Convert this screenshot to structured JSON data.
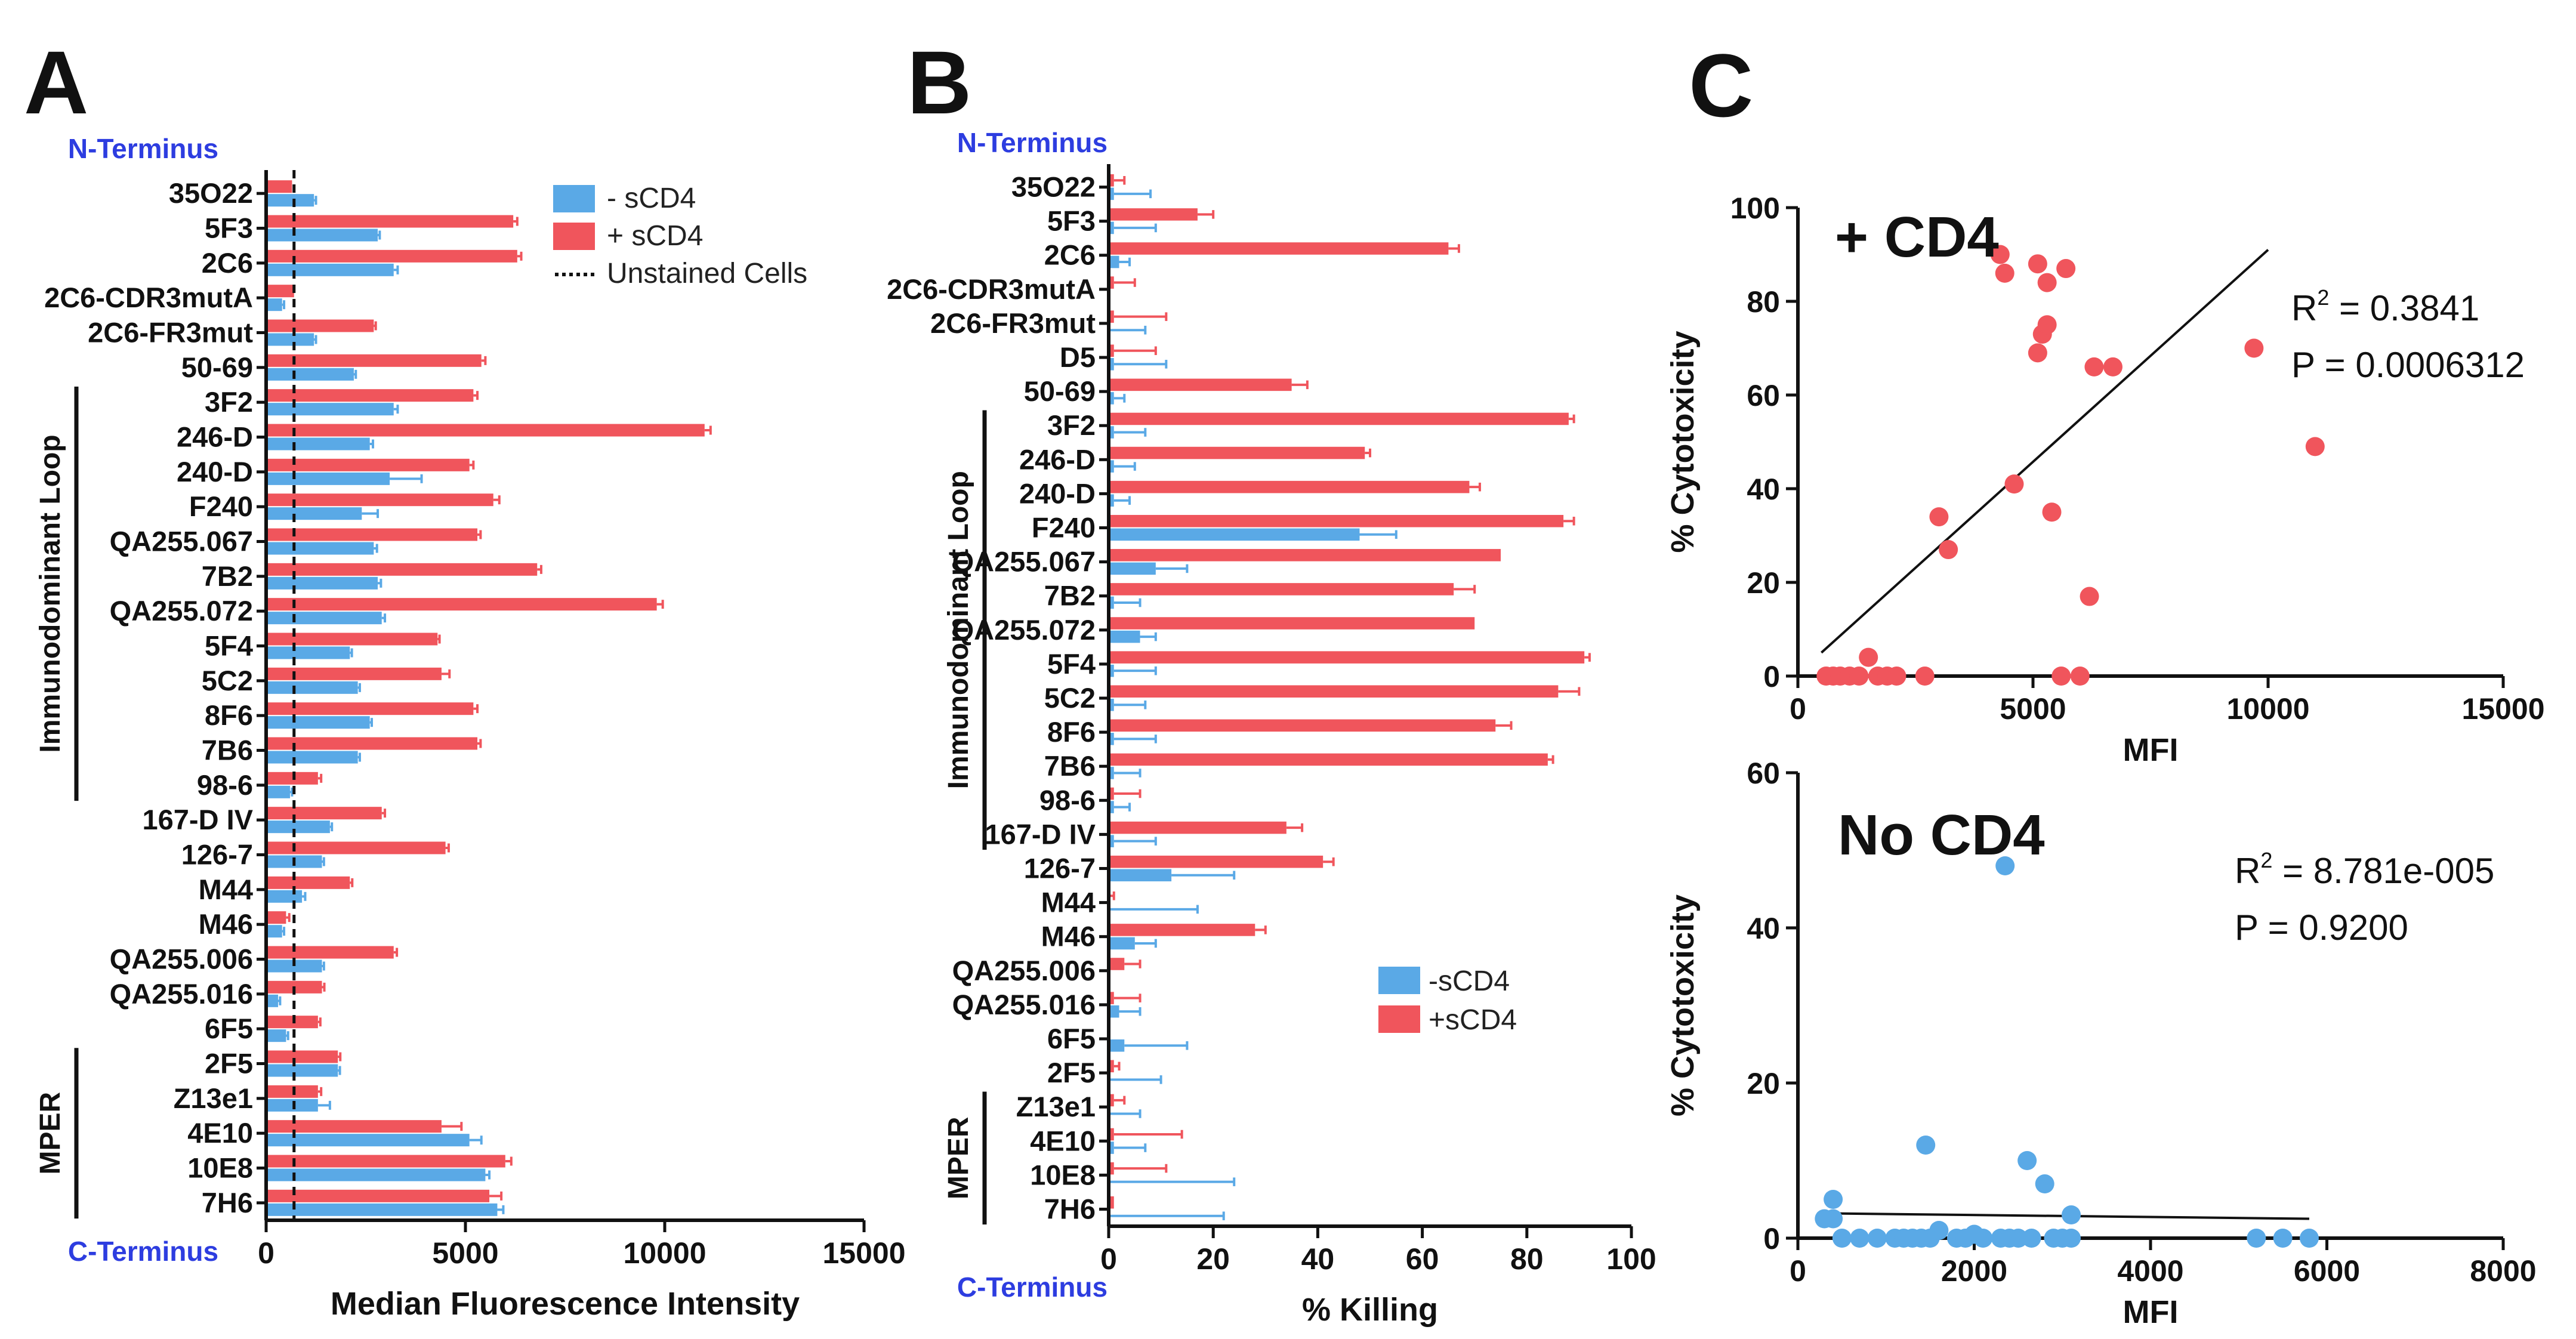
{
  "figure_labels": {
    "a": "A",
    "b": "B",
    "c": "C"
  },
  "colors": {
    "minus": "#5aa9e6",
    "plus": "#f0555c",
    "axis": "#111111",
    "terminus": "#2d3de0"
  },
  "chart_data": [
    {
      "id": "A",
      "type": "bar",
      "orientation": "horizontal",
      "title": "",
      "xlabel": "Median Fluorescence Intensity",
      "xlim": [
        0,
        15000
      ],
      "xticks": [
        0,
        5000,
        10000,
        15000
      ],
      "xtick_labels": [
        "0",
        "5000",
        "10000",
        "15000"
      ],
      "top_label": "N-Terminus",
      "bottom_label": "C-Terminus",
      "groups": [
        {
          "label": "Immunodominant Loop",
          "from": "3F2",
          "to": "98-6"
        },
        {
          "label": "MPER",
          "from": "2F5",
          "to": "7H6"
        }
      ],
      "reference_line": {
        "label": "Unstained Cells",
        "value": 700
      },
      "legend": {
        "position": "top-right",
        "entries": [
          "- sCD4",
          "+ sCD4",
          "Unstained Cells"
        ]
      },
      "categories": [
        "35O22",
        "5F3",
        "2C6",
        "2C6-CDR3mutA",
        "2C6-FR3mut",
        "50-69",
        "3F2",
        "246-D",
        "240-D",
        "F240",
        "QA255.067",
        "7B2",
        "QA255.072",
        "5F4",
        "5C2",
        "8F6",
        "7B6",
        "98-6",
        "167-D IV",
        "126-7",
        "M44",
        "M46",
        "QA255.006",
        "QA255.016",
        "6F5",
        "2F5",
        "Z13e1",
        "4E10",
        "10E8",
        "7H6"
      ],
      "series": [
        {
          "name": "+ sCD4",
          "values": [
            650,
            6200,
            6300,
            700,
            2700,
            5400,
            5200,
            11000,
            5100,
            5700,
            5300,
            6800,
            9800,
            4300,
            4400,
            5200,
            5300,
            1300,
            2900,
            4500,
            2100,
            500,
            3200,
            1400,
            1300,
            1800,
            1300,
            4400,
            6000,
            5600
          ],
          "errors": [
            0,
            100,
            100,
            0,
            50,
            100,
            100,
            150,
            100,
            150,
            80,
            100,
            150,
            50,
            200,
            100,
            80,
            80,
            80,
            80,
            60,
            80,
            80,
            60,
            60,
            60,
            80,
            500,
            150,
            300
          ]
        },
        {
          "name": "- sCD4",
          "values": [
            1200,
            2800,
            3200,
            400,
            1200,
            2200,
            3200,
            2600,
            3100,
            2400,
            2700,
            2800,
            2900,
            2100,
            2300,
            2600,
            2300,
            600,
            1600,
            1400,
            900,
            400,
            1400,
            300,
            500,
            1800,
            1300,
            5100,
            5500,
            5800
          ],
          "errors": [
            50,
            50,
            100,
            50,
            50,
            50,
            100,
            80,
            800,
            400,
            80,
            80,
            80,
            50,
            50,
            50,
            50,
            50,
            50,
            50,
            80,
            50,
            50,
            50,
            50,
            50,
            300,
            300,
            100,
            150
          ]
        }
      ]
    },
    {
      "id": "B",
      "type": "bar",
      "orientation": "horizontal",
      "title": "",
      "xlabel": "% Killing",
      "xlim": [
        0,
        100
      ],
      "xticks": [
        0,
        20,
        40,
        60,
        80,
        100
      ],
      "xtick_labels": [
        "0",
        "20",
        "40",
        "60",
        "80",
        "100"
      ],
      "top_label": "N-Terminus",
      "bottom_label": "C-Terminus",
      "groups": [
        {
          "label": "Immunodominant Loop",
          "from": "3F2",
          "to": "167-D IV"
        },
        {
          "label": "MPER",
          "from": "Z13e1",
          "to": "7H6"
        }
      ],
      "legend": {
        "position": "bottom-right",
        "entries": [
          "-sCD4",
          "+sCD4"
        ]
      },
      "categories": [
        "35O22",
        "5F3",
        "2C6",
        "2C6-CDR3mutA",
        "2C6-FR3mut",
        "D5",
        "50-69",
        "3F2",
        "246-D",
        "240-D",
        "F240",
        "QA255.067",
        "7B2",
        "QA255.072",
        "5F4",
        "5C2",
        "8F6",
        "7B6",
        "98-6",
        "167-D IV",
        "126-7",
        "M44",
        "M46",
        "QA255.006",
        "QA255.016",
        "6F5",
        "2F5",
        "Z13e1",
        "4E10",
        "10E8",
        "7H6"
      ],
      "series": [
        {
          "name": "+sCD4",
          "values": [
            1,
            17,
            65,
            1,
            1,
            1,
            35,
            88,
            49,
            69,
            87,
            75,
            66,
            70,
            91,
            86,
            74,
            84,
            1,
            34,
            41,
            0,
            28,
            3,
            1,
            0,
            1,
            1,
            1,
            1,
            1
          ],
          "errors": [
            2,
            3,
            2,
            4,
            10,
            8,
            3,
            1,
            1,
            2,
            2,
            0,
            4,
            0,
            1,
            4,
            3,
            1,
            5,
            3,
            2,
            1,
            2,
            3,
            5,
            0,
            1,
            2,
            13,
            10,
            0
          ]
        },
        {
          "name": "-sCD4",
          "values": [
            1,
            1,
            2,
            0,
            0,
            1,
            1,
            1,
            1,
            1,
            48,
            9,
            1,
            6,
            1,
            1,
            1,
            1,
            1,
            1,
            12,
            0,
            5,
            0,
            2,
            3,
            0,
            0,
            1,
            0,
            0
          ],
          "errors": [
            7,
            8,
            2,
            0,
            7,
            10,
            2,
            6,
            4,
            3,
            7,
            6,
            5,
            3,
            8,
            6,
            8,
            5,
            3,
            8,
            12,
            17,
            4,
            0,
            4,
            12,
            10,
            6,
            6,
            24,
            22
          ]
        }
      ]
    },
    {
      "id": "C-top",
      "type": "scatter",
      "title": "+ CD4",
      "xlabel": "MFI",
      "ylabel": "% Cytotoxicity",
      "xlim": [
        0,
        15000
      ],
      "ylim": [
        0,
        100
      ],
      "xticks": [
        0,
        5000,
        10000,
        15000
      ],
      "xtick_labels": [
        "0",
        "5000",
        "10000",
        "15000"
      ],
      "yticks": [
        0,
        20,
        40,
        60,
        80,
        100
      ],
      "ytick_labels": [
        "0",
        "20",
        "40",
        "60",
        "80",
        "100"
      ],
      "r2_label": "R",
      "r2_value": " = 0.3841",
      "p_label": "P = 0.0006312",
      "fit_line": {
        "x": [
          500,
          10000
        ],
        "y": [
          5,
          91
        ]
      },
      "x": [
        600,
        750,
        900,
        1100,
        1300,
        1500,
        1700,
        1900,
        2100,
        2700,
        3000,
        3200,
        4300,
        4400,
        4600,
        5100,
        5100,
        5200,
        5300,
        5300,
        5400,
        5600,
        5700,
        6000,
        6200,
        6300,
        6700,
        9700,
        11000
      ],
      "y": [
        0,
        0,
        0,
        0,
        0,
        4,
        0,
        0,
        0,
        0,
        34,
        27,
        90,
        86,
        41,
        88,
        69,
        73,
        75,
        84,
        35,
        0,
        87,
        0,
        17,
        66,
        66,
        70,
        49
      ]
    },
    {
      "id": "C-bottom",
      "type": "scatter",
      "title": "No  CD4",
      "xlabel": "MFI",
      "ylabel": "% Cytotoxicity",
      "xlim": [
        0,
        8000
      ],
      "ylim": [
        0,
        60
      ],
      "xticks": [
        0,
        2000,
        4000,
        6000,
        8000
      ],
      "xtick_labels": [
        "0",
        "2000",
        "4000",
        "6000",
        "8000"
      ],
      "yticks": [
        0,
        20,
        40,
        60
      ],
      "ytick_labels": [
        "0",
        "20",
        "40",
        "60"
      ],
      "r2_label": "R",
      "r2_value": " = 8.781e-005",
      "p_label": "P = 0.9200",
      "fit_line": {
        "x": [
          300,
          5800
        ],
        "y": [
          3.2,
          2.5
        ]
      },
      "x": [
        300,
        400,
        400,
        500,
        700,
        900,
        1100,
        1200,
        1300,
        1400,
        1450,
        1500,
        1600,
        1800,
        1900,
        2000,
        2100,
        2300,
        2350,
        2400,
        2500,
        2600,
        2650,
        2800,
        2900,
        3000,
        3100,
        3100,
        5200,
        5500,
        5800
      ],
      "y": [
        2.5,
        5,
        2.5,
        0,
        0,
        0,
        0,
        0,
        0,
        0,
        12,
        0,
        1,
        0,
        0,
        0.5,
        0,
        0,
        48,
        0,
        0,
        10,
        0,
        7,
        0,
        0,
        0,
        3,
        0,
        0,
        0
      ]
    }
  ],
  "superscript_2": "2"
}
